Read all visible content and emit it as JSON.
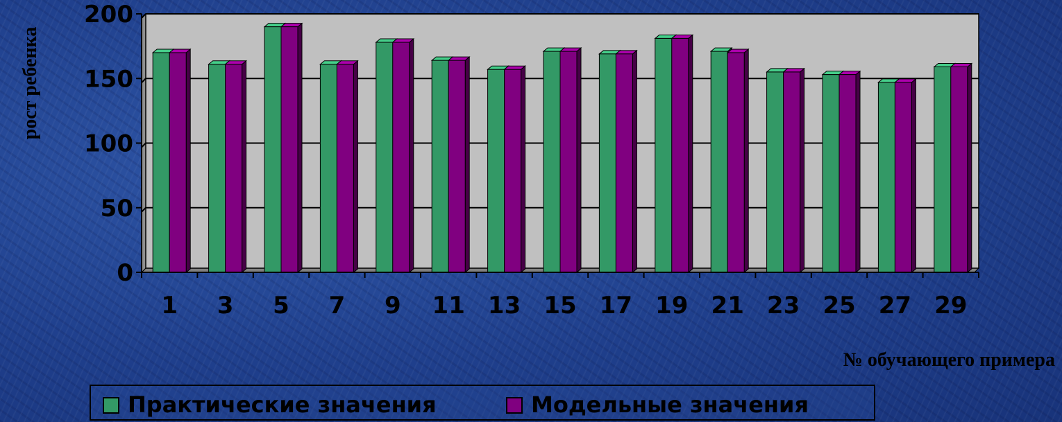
{
  "chart_data": {
    "type": "bar",
    "title": "",
    "xlabel": "№ обучающего примера",
    "ylabel": "рост ребенка",
    "ylim": [
      0,
      200
    ],
    "yticks": [
      0,
      50,
      100,
      150,
      200
    ],
    "categories": [
      "1",
      "3",
      "5",
      "7",
      "9",
      "11",
      "13",
      "15",
      "17",
      "19",
      "21",
      "23",
      "25",
      "27",
      "29"
    ],
    "series": [
      {
        "name": "Практические значения",
        "color": "#339966",
        "values": [
          170,
          161,
          190,
          161,
          178,
          164,
          157,
          171,
          169,
          181,
          171,
          155,
          153,
          147,
          159
        ]
      },
      {
        "name": "Модельные значения",
        "color": "#800080",
        "values": [
          170,
          161,
          190,
          161,
          178,
          164,
          157,
          171,
          169,
          181,
          170,
          155,
          153,
          147,
          159
        ]
      }
    ],
    "grid": true,
    "legend_position": "bottom",
    "plot_background": "#c0c0c0"
  }
}
